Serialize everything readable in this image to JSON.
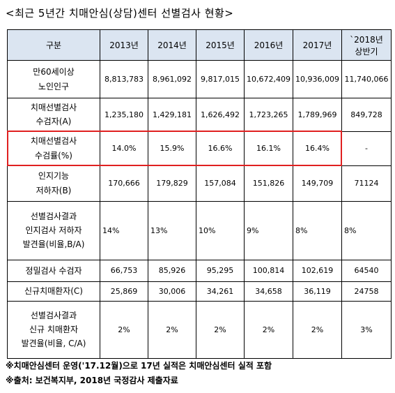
{
  "title": "<최근 5년간 치매안심(상담)센터 선별검사 현황>",
  "table": {
    "header": [
      [
        "구분"
      ],
      [
        "2013년"
      ],
      [
        "2014년"
      ],
      [
        "2015년"
      ],
      [
        "2016년"
      ],
      [
        "2017년"
      ],
      [
        "`2018년",
        "상반기"
      ]
    ],
    "rows": [
      {
        "label": [
          "만60세이상",
          "노인인구"
        ],
        "cells": [
          "8,813,783",
          "8,961,092",
          "9,817,015",
          "10,672,409",
          "10,936,009",
          "11,740,066"
        ]
      },
      {
        "label": [
          "치매선별검사",
          "수검자(A)"
        ],
        "cells": [
          "1,235,180",
          "1,429,181",
          "1,626,492",
          "1,723,265",
          "1,789,969",
          "849,728"
        ]
      },
      {
        "label": [
          "치매선별검사",
          "수검률(%)"
        ],
        "cells": [
          "14.0%",
          "15.9%",
          "16.6%",
          "16.1%",
          "16.4%",
          "-"
        ]
      },
      {
        "label": [
          "인지기능",
          "저하자(B)"
        ],
        "cells": [
          "170,666",
          "179,829",
          "157,084",
          "151,826",
          "149,709",
          "71124"
        ]
      },
      {
        "label": [
          "선별검사결과",
          "인지검사 저하자",
          "발견율(비율,B/A)"
        ],
        "cells": [
          "14%",
          "13%",
          "10%",
          "9%",
          "8%",
          "8%"
        ]
      },
      {
        "label": [
          "정밀검사 수검자"
        ],
        "cells": [
          "66,753",
          "85,926",
          "95,295",
          "100,814",
          "102,619",
          "64540"
        ]
      },
      {
        "label": [
          "신규치매환자(C)"
        ],
        "cells": [
          "25,869",
          "30,006",
          "34,261",
          "34,658",
          "36,119",
          "24758"
        ]
      },
      {
        "label": [
          "선별검사결과",
          "신규 치매환자",
          "발견율(비율, C/A)"
        ],
        "cells": [
          "2%",
          "2%",
          "2%",
          "2%",
          "2%",
          "3%"
        ]
      }
    ]
  },
  "notes": [
    "※치매안심센터 운영('17.12월)으로 17년 실적은 치매안심센터 실적 포함",
    "※출처: 보건복지부, 2018년 국정감사 제출자료"
  ]
}
